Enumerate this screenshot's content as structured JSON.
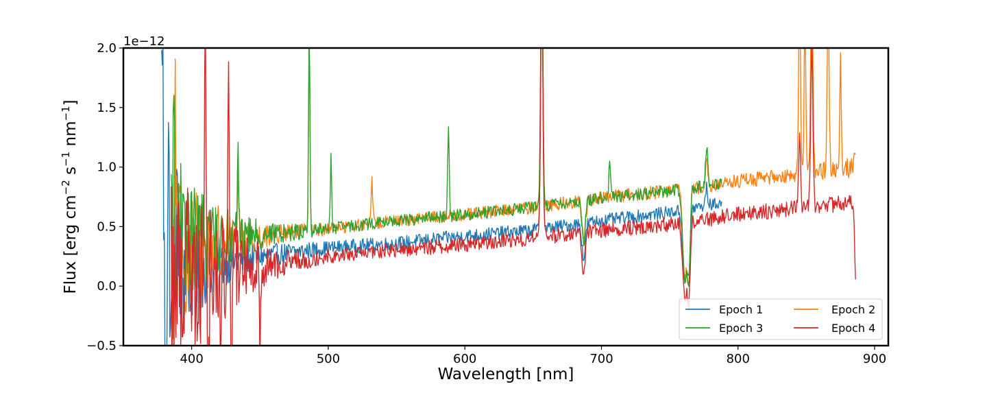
{
  "chart_data": {
    "type": "line",
    "xlabel": "Wavelength [nm]",
    "ylabel_parts": {
      "base": "Flux [erg cm",
      "sup1": "−2",
      "mid1": " s",
      "sup2": "−1",
      "mid2": " nm",
      "sup3": "−1",
      "end": "]"
    },
    "offset_text": "1e−12",
    "xlim": [
      350,
      910
    ],
    "ylim": [
      -0.5,
      2.0
    ],
    "x_ticks": [
      400,
      500,
      600,
      700,
      800,
      900
    ],
    "y_ticks": [
      -0.5,
      0.0,
      0.5,
      1.0,
      1.5,
      2.0
    ],
    "y_tick_labels": [
      "−0.5",
      "0.0",
      "0.5",
      "1.0",
      "1.5",
      "2.0"
    ],
    "grid": false,
    "legend": {
      "position": "lower-right",
      "columns": 2,
      "order": [
        0,
        2,
        1,
        3
      ]
    },
    "series": [
      {
        "name": "Epoch 1",
        "color": "#1f77b4",
        "x_range": [
          378,
          788
        ],
        "baseline": [
          [
            378,
            0.1
          ],
          [
            400,
            0.14
          ],
          [
            450,
            0.25
          ],
          [
            500,
            0.32
          ],
          [
            550,
            0.36
          ],
          [
            600,
            0.42
          ],
          [
            650,
            0.47
          ],
          [
            700,
            0.55
          ],
          [
            750,
            0.62
          ],
          [
            788,
            0.7
          ]
        ],
        "noise": [
          [
            378,
            0.45
          ],
          [
            395,
            0.3
          ],
          [
            420,
            0.12
          ],
          [
            450,
            0.06
          ],
          [
            500,
            0.035
          ],
          [
            788,
            0.03
          ]
        ],
        "features": [
          [
            378.5,
            2.2,
            0.6
          ],
          [
            381,
            -0.8,
            0.6
          ],
          [
            383,
            1.0,
            0.5
          ],
          [
            385,
            -0.6,
            0.5
          ],
          [
            389,
            0.9,
            0.5
          ],
          [
            656.3,
            2.2,
            0.8
          ],
          [
            687,
            -0.3,
            1.2
          ],
          [
            761,
            -0.6,
            1.5
          ],
          [
            764,
            -0.5,
            1.0
          ],
          [
            777,
            0.15,
            0.8
          ]
        ]
      },
      {
        "name": "Epoch 2",
        "color": "#ff7f0e",
        "x_range": [
          385,
          886
        ],
        "baseline": [
          [
            385,
            0.3
          ],
          [
            400,
            0.35
          ],
          [
            450,
            0.42
          ],
          [
            500,
            0.48
          ],
          [
            550,
            0.55
          ],
          [
            600,
            0.6
          ],
          [
            650,
            0.66
          ],
          [
            700,
            0.74
          ],
          [
            750,
            0.8
          ],
          [
            800,
            0.88
          ],
          [
            850,
            0.95
          ],
          [
            886,
            1.0
          ]
        ],
        "noise": [
          [
            385,
            0.5
          ],
          [
            400,
            0.3
          ],
          [
            430,
            0.12
          ],
          [
            460,
            0.05
          ],
          [
            500,
            0.03
          ],
          [
            830,
            0.035
          ],
          [
            886,
            0.05
          ]
        ],
        "features": [
          [
            386,
            -1.2,
            0.5
          ],
          [
            388,
            1.4,
            0.5
          ],
          [
            434,
            0.7,
            0.5
          ],
          [
            486.1,
            1.6,
            0.5
          ],
          [
            532,
            0.35,
            0.6
          ],
          [
            656.3,
            2.2,
            0.8
          ],
          [
            687,
            -0.35,
            1.2
          ],
          [
            761,
            -0.75,
            1.5
          ],
          [
            764,
            -0.7,
            1.0
          ],
          [
            777,
            0.25,
            0.8
          ],
          [
            845,
            1.5,
            0.7
          ],
          [
            849,
            1.3,
            0.6
          ],
          [
            854,
            1.7,
            0.8
          ],
          [
            866,
            1.4,
            0.7
          ],
          [
            875,
            0.9,
            0.6
          ],
          [
            886,
            0.15,
            0.6
          ]
        ]
      },
      {
        "name": "Epoch 3",
        "color": "#2ca02c",
        "x_range": [
          385,
          788
        ],
        "baseline": [
          [
            385,
            0.4
          ],
          [
            400,
            0.4
          ],
          [
            450,
            0.43
          ],
          [
            500,
            0.48
          ],
          [
            550,
            0.55
          ],
          [
            600,
            0.6
          ],
          [
            650,
            0.66
          ],
          [
            700,
            0.74
          ],
          [
            750,
            0.8
          ],
          [
            788,
            0.86
          ]
        ],
        "noise": [
          [
            385,
            0.45
          ],
          [
            400,
            0.28
          ],
          [
            430,
            0.12
          ],
          [
            460,
            0.05
          ],
          [
            500,
            0.03
          ],
          [
            788,
            0.03
          ]
        ],
        "features": [
          [
            387,
            1.5,
            0.5
          ],
          [
            434,
            0.8,
            0.5
          ],
          [
            486.1,
            1.7,
            0.5
          ],
          [
            502,
            0.6,
            0.5
          ],
          [
            588,
            0.7,
            0.6
          ],
          [
            656.3,
            2.2,
            0.8
          ],
          [
            687,
            -0.35,
            1.2
          ],
          [
            706,
            0.3,
            0.6
          ],
          [
            761,
            -0.75,
            1.5
          ],
          [
            764,
            -0.7,
            1.0
          ],
          [
            777,
            0.35,
            0.8
          ]
        ]
      },
      {
        "name": "Epoch 4",
        "color": "#d62728",
        "x_range": [
          385,
          886
        ],
        "baseline": [
          [
            385,
            0.05
          ],
          [
            400,
            0.1
          ],
          [
            450,
            0.18
          ],
          [
            500,
            0.25
          ],
          [
            550,
            0.3
          ],
          [
            600,
            0.35
          ],
          [
            650,
            0.4
          ],
          [
            700,
            0.47
          ],
          [
            750,
            0.52
          ],
          [
            800,
            0.6
          ],
          [
            850,
            0.67
          ],
          [
            886,
            0.7
          ]
        ],
        "noise": [
          [
            385,
            0.55
          ],
          [
            400,
            0.4
          ],
          [
            420,
            0.3
          ],
          [
            440,
            0.15
          ],
          [
            470,
            0.06
          ],
          [
            500,
            0.035
          ],
          [
            886,
            0.04
          ]
        ],
        "features": [
          [
            396,
            1.1,
            0.5
          ],
          [
            410,
            2.3,
            0.6
          ],
          [
            412,
            -1.0,
            0.5
          ],
          [
            421,
            -0.8,
            0.5
          ],
          [
            427,
            1.7,
            0.5
          ],
          [
            429,
            -0.9,
            0.5
          ],
          [
            450,
            -0.7,
            0.5
          ],
          [
            656.3,
            2.2,
            0.8
          ],
          [
            687,
            -0.35,
            1.2
          ],
          [
            761,
            -0.65,
            1.5
          ],
          [
            764,
            -0.6,
            1.0
          ],
          [
            845,
            0.6,
            0.7
          ],
          [
            854,
            1.3,
            0.8
          ],
          [
            886,
            -0.7,
            0.6
          ]
        ]
      }
    ]
  }
}
